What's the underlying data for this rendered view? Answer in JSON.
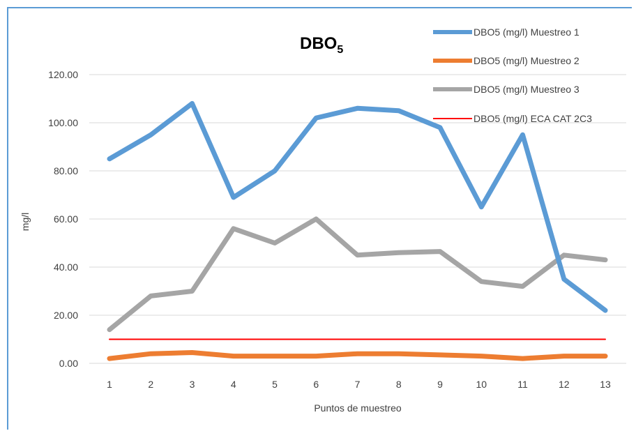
{
  "chart_data": {
    "type": "line",
    "title": "DBO",
    "title_subscript": "5",
    "xlabel": "Puntos de muestreo",
    "ylabel": "mg/l",
    "ylim": [
      0,
      120
    ],
    "yticks": [
      "0.00",
      "20.00",
      "40.00",
      "60.00",
      "80.00",
      "100.00",
      "120.00"
    ],
    "grid": true,
    "legend_position": "top-right",
    "categories": [
      "1",
      "2",
      "3",
      "4",
      "5",
      "6",
      "7",
      "8",
      "9",
      "10",
      "11",
      "12",
      "13"
    ],
    "series": [
      {
        "name": "DBO5 (mg/l) Muestreo 1",
        "color": "#5b9bd5",
        "values": [
          85,
          95,
          108,
          69,
          80,
          102,
          106,
          105,
          98,
          65,
          95,
          35,
          22
        ]
      },
      {
        "name": "DBO5 (mg/l) Muestreo 2",
        "color": "#ed7d31",
        "values": [
          2,
          4,
          4.5,
          3,
          3,
          3,
          4,
          4,
          3.5,
          3,
          2,
          3,
          3
        ]
      },
      {
        "name": "DBO5 (mg/l) Muestreo 3",
        "color": "#a5a5a5",
        "values": [
          14,
          28,
          30,
          56,
          50,
          60,
          45,
          46,
          46.5,
          34,
          32,
          45,
          43
        ]
      },
      {
        "name": "DBO5 (mg/l) ECA CAT 2C3",
        "color": "#ff0000",
        "values": [
          10,
          10,
          10,
          10,
          10,
          10,
          10,
          10,
          10,
          10,
          10,
          10,
          10
        ]
      }
    ]
  }
}
